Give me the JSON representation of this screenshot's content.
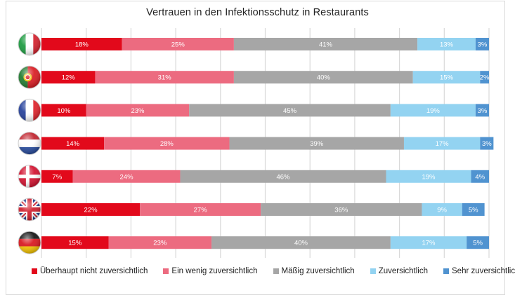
{
  "chart_data": {
    "type": "bar",
    "orientation": "horizontal",
    "stacked": "100%",
    "title": "Vertrauen in den Infektionsschutz in Restaurants",
    "xlabel": "",
    "ylabel": "",
    "xlim": [
      0,
      100
    ],
    "grid": "vertical every 10%",
    "legend_position": "bottom",
    "categories": [
      "Italien",
      "Portugal",
      "Frankreich",
      "Niederlande",
      "Dänemark",
      "Großbritannien",
      "Deutschland"
    ],
    "category_icons": [
      "flag-italy",
      "flag-portugal",
      "flag-france",
      "flag-netherlands",
      "flag-denmark",
      "flag-uk",
      "flag-germany"
    ],
    "series": [
      {
        "name": "Überhaupt nicht zuversichtlich",
        "color": "#e2091b",
        "values": [
          18,
          12,
          10,
          14,
          7,
          22,
          15
        ]
      },
      {
        "name": "Ein wenig zuversichtlich",
        "color": "#ec6b80",
        "values": [
          25,
          31,
          23,
          28,
          24,
          27,
          23
        ]
      },
      {
        "name": "Mäßig zuversichtlich",
        "color": "#a6a6a6",
        "values": [
          41,
          40,
          45,
          39,
          46,
          36,
          40
        ]
      },
      {
        "name": "Zuversichtlich",
        "color": "#93d3f1",
        "values": [
          13,
          15,
          19,
          17,
          19,
          9,
          17
        ]
      },
      {
        "name": "Sehr zuversichtlich",
        "color": "#5093d0",
        "values": [
          3,
          2,
          3,
          3,
          4,
          5,
          5
        ]
      }
    ],
    "value_format": "{v}%"
  }
}
